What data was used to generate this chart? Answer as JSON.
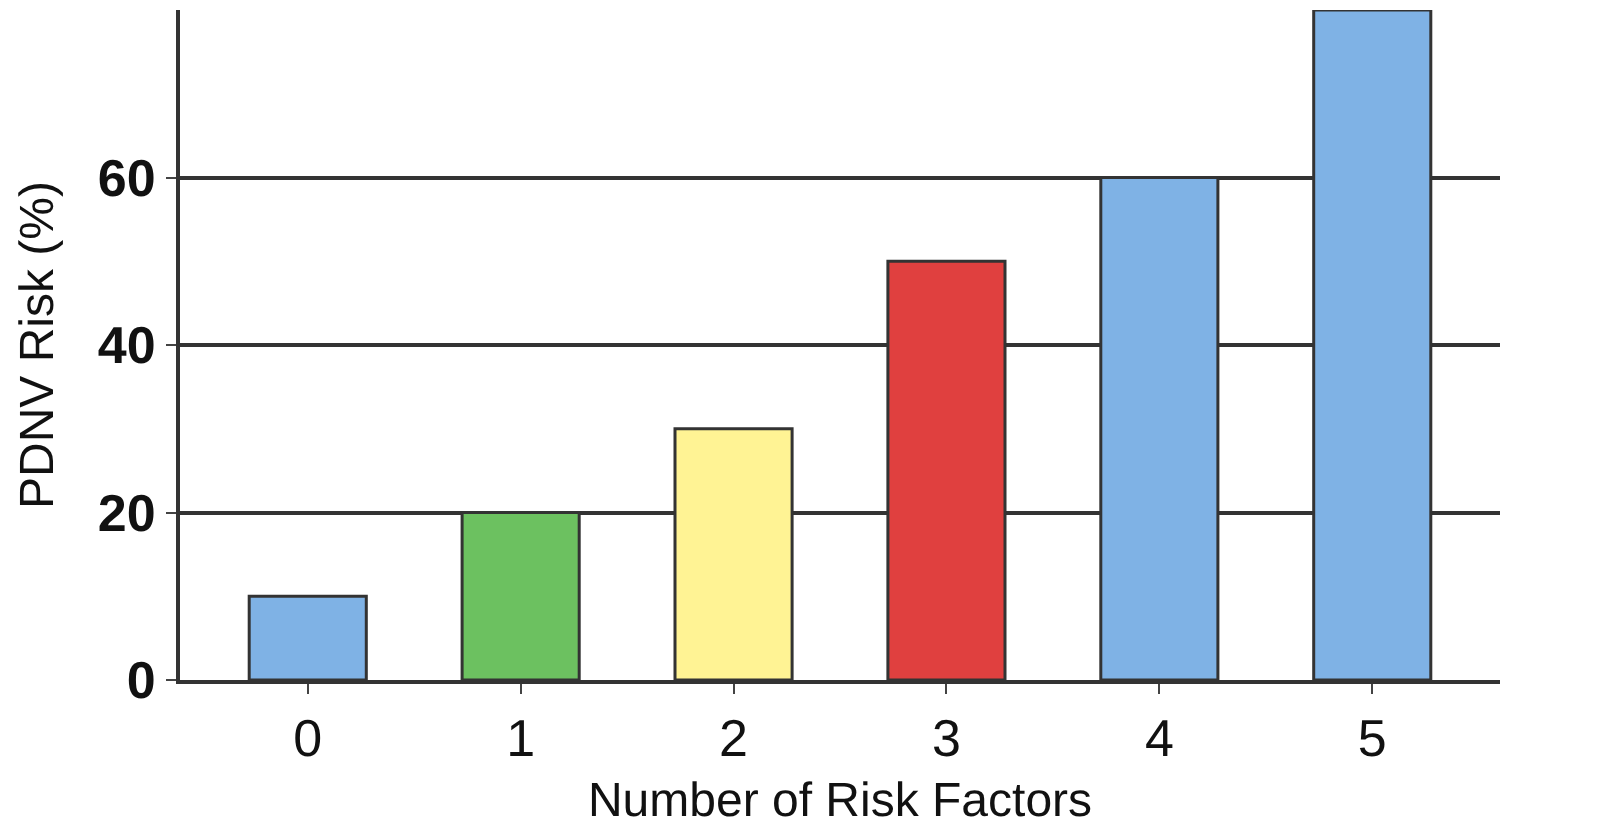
{
  "chart_data": {
    "type": "bar",
    "xlabel": "Number of Risk Factors",
    "ylabel": "PDNV Risk (%)",
    "categories": [
      "0",
      "1",
      "2",
      "3",
      "4",
      "5"
    ],
    "values": [
      10,
      20,
      30,
      50,
      60,
      80
    ],
    "colors": [
      "#7fb2e5",
      "#6cc160",
      "#fff394",
      "#e0403f",
      "#7fb2e5",
      "#7fb2e5"
    ],
    "ylim": [
      0,
      80
    ],
    "yticks": [
      0,
      20,
      40,
      60
    ],
    "grid": "y"
  }
}
